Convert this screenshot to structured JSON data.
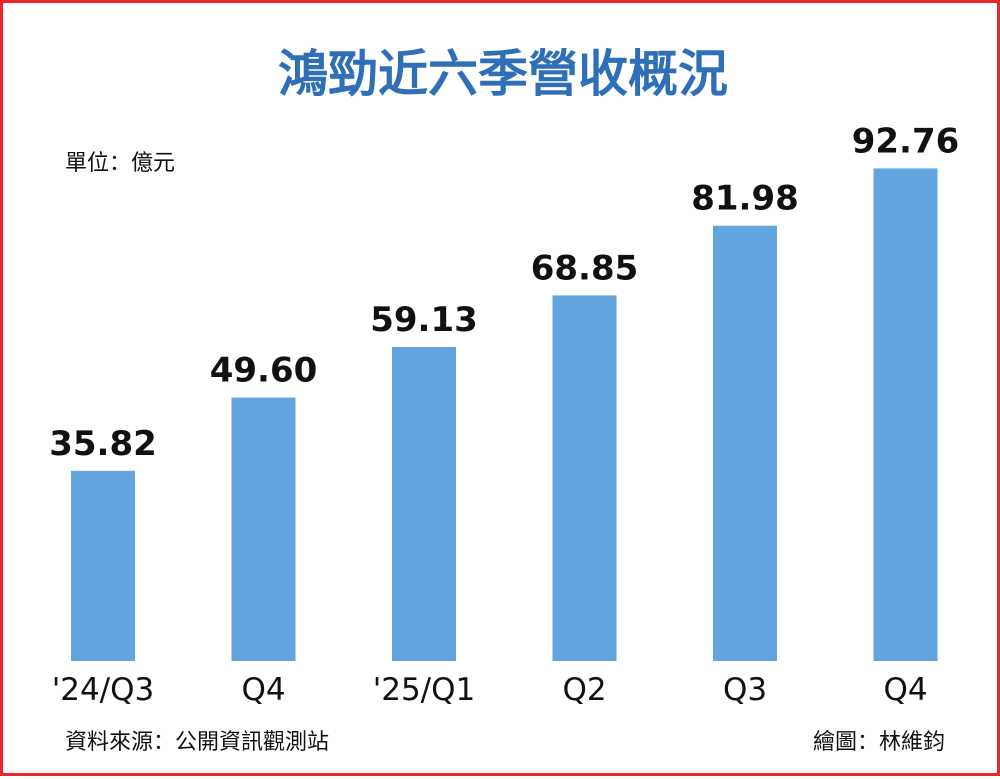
{
  "chart_data": {
    "type": "bar",
    "title": "鴻勁近六季營收概況",
    "unit": "單位：億元",
    "categories": [
      "'24/Q3",
      "Q4",
      "'25/Q1",
      "Q2",
      "Q3",
      "Q4"
    ],
    "values": [
      35.82,
      49.6,
      59.13,
      68.85,
      81.98,
      92.76
    ],
    "value_labels": [
      "35.82",
      "49.60",
      "59.13",
      "68.85",
      "81.98",
      "92.76"
    ],
    "ylim": [
      0,
      100
    ],
    "grid": false,
    "legend": "none",
    "bar_color": "#62a5df",
    "title_color": "#2e6fb8",
    "border_color": "#e8262c"
  },
  "footer": {
    "source": "資料來源：公開資訊觀測站",
    "credit": "繪圖：林維鈞"
  }
}
